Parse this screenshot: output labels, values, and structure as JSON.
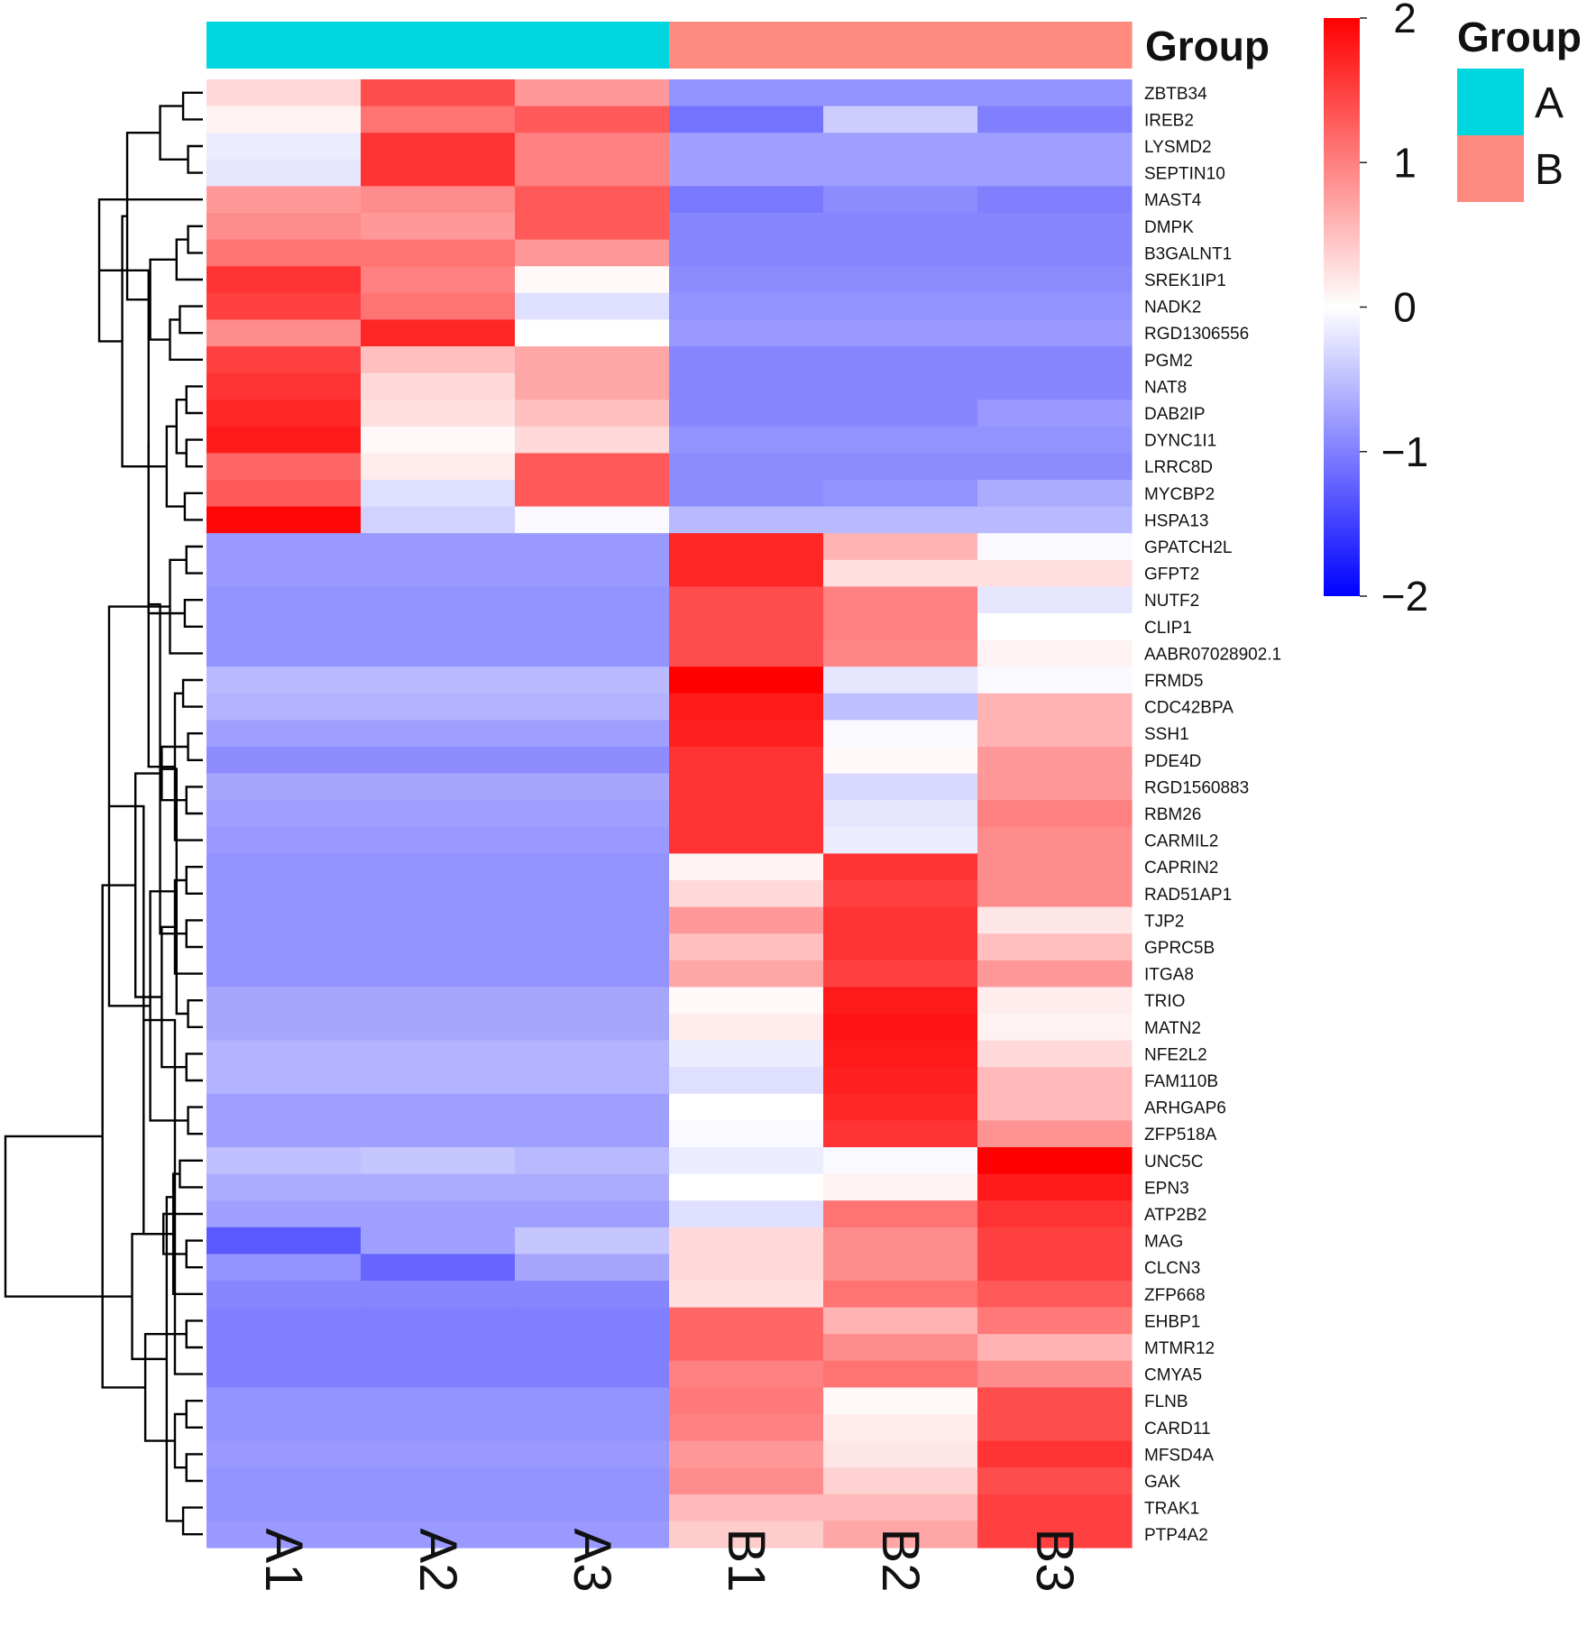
{
  "chart_data": {
    "type": "heatmap",
    "columns": [
      "A1",
      "A2",
      "A3",
      "B1",
      "B2",
      "B3"
    ],
    "column_groups": [
      "A",
      "A",
      "A",
      "B",
      "B",
      "B"
    ],
    "annotation_title": "Group",
    "groups": [
      {
        "name": "A",
        "color": "#00D6DF"
      },
      {
        "name": "B",
        "color": "#FF8A80"
      }
    ],
    "legend_title": "Group",
    "color_scale": {
      "min": -2,
      "max": 2,
      "low": "#0000FF",
      "mid": "#FFFFFF",
      "high": "#FF0000",
      "ticks": [
        "2",
        "1",
        "0",
        "−1",
        "−2"
      ]
    },
    "rows": [
      {
        "gene": "ZBTB34",
        "values": [
          0.3,
          1.4,
          0.8,
          -0.85,
          -0.85,
          -0.85
        ]
      },
      {
        "gene": "IREB2",
        "values": [
          0.1,
          1.1,
          1.3,
          -1.1,
          -0.4,
          -1.0
        ]
      },
      {
        "gene": "LYSMD2",
        "values": [
          -0.15,
          1.6,
          1.0,
          -0.75,
          -0.75,
          -0.75
        ]
      },
      {
        "gene": "SEPTIN10",
        "values": [
          -0.2,
          1.6,
          1.0,
          -0.75,
          -0.75,
          -0.75
        ]
      },
      {
        "gene": "MAST4",
        "values": [
          0.8,
          0.9,
          1.3,
          -1.05,
          -0.9,
          -1.0
        ]
      },
      {
        "gene": "DMPK",
        "values": [
          0.9,
          0.8,
          1.3,
          -0.95,
          -0.95,
          -0.95
        ]
      },
      {
        "gene": "B3GALNT1",
        "values": [
          1.1,
          1.1,
          0.8,
          -0.95,
          -0.95,
          -0.95
        ]
      },
      {
        "gene": "SREK1IP1",
        "values": [
          1.6,
          1.0,
          0.05,
          -0.9,
          -0.9,
          -0.9
        ]
      },
      {
        "gene": "NADK2",
        "values": [
          1.5,
          1.1,
          -0.25,
          -0.85,
          -0.85,
          -0.85
        ]
      },
      {
        "gene": "RGD1306556",
        "values": [
          0.9,
          1.7,
          0.0,
          -0.8,
          -0.8,
          -0.8
        ]
      },
      {
        "gene": "PGM2",
        "values": [
          1.5,
          0.5,
          0.7,
          -0.95,
          -0.95,
          -0.95
        ]
      },
      {
        "gene": "NAT8",
        "values": [
          1.6,
          0.3,
          0.7,
          -0.95,
          -0.95,
          -0.95
        ]
      },
      {
        "gene": "DAB2IP",
        "values": [
          1.7,
          0.25,
          0.5,
          -0.95,
          -0.95,
          -0.8
        ]
      },
      {
        "gene": "DYNC1I1",
        "values": [
          1.8,
          0.05,
          0.3,
          -0.85,
          -0.85,
          -0.85
        ]
      },
      {
        "gene": "LRRC8D",
        "values": [
          1.2,
          0.15,
          1.3,
          -0.9,
          -0.9,
          -0.9
        ]
      },
      {
        "gene": "MYCBP2",
        "values": [
          1.3,
          -0.25,
          1.3,
          -0.9,
          -0.85,
          -0.65
        ]
      },
      {
        "gene": "HSPA13",
        "values": [
          1.95,
          -0.35,
          -0.05,
          -0.55,
          -0.55,
          -0.55
        ]
      },
      {
        "gene": "GPATCH2L",
        "values": [
          -0.8,
          -0.8,
          -0.8,
          1.7,
          0.6,
          -0.05
        ]
      },
      {
        "gene": "GFPT2",
        "values": [
          -0.8,
          -0.8,
          -0.8,
          1.7,
          0.25,
          0.25
        ]
      },
      {
        "gene": "NUTF2",
        "values": [
          -0.85,
          -0.85,
          -0.85,
          1.4,
          1.0,
          -0.2
        ]
      },
      {
        "gene": "CLIP1",
        "values": [
          -0.85,
          -0.85,
          -0.85,
          1.4,
          1.0,
          0.0
        ]
      },
      {
        "gene": "AABR07028902.1",
        "values": [
          -0.85,
          -0.85,
          -0.85,
          1.4,
          0.95,
          0.1
        ]
      },
      {
        "gene": "FRMD5",
        "values": [
          -0.55,
          -0.55,
          -0.55,
          2.0,
          -0.2,
          -0.05
        ]
      },
      {
        "gene": "CDC42BPA",
        "values": [
          -0.6,
          -0.6,
          -0.6,
          1.8,
          -0.5,
          0.6
        ]
      },
      {
        "gene": "SSH1",
        "values": [
          -0.75,
          -0.75,
          -0.75,
          1.75,
          -0.05,
          0.6
        ]
      },
      {
        "gene": "PDE4D",
        "values": [
          -0.9,
          -0.9,
          -0.9,
          1.6,
          0.05,
          0.8
        ]
      },
      {
        "gene": "RGD1560883",
        "values": [
          -0.7,
          -0.7,
          -0.7,
          1.6,
          -0.3,
          0.8
        ]
      },
      {
        "gene": "RBM26",
        "values": [
          -0.75,
          -0.75,
          -0.75,
          1.6,
          -0.2,
          1.0
        ]
      },
      {
        "gene": "CARMIL2",
        "values": [
          -0.8,
          -0.8,
          -0.8,
          1.6,
          -0.15,
          0.9
        ]
      },
      {
        "gene": "CAPRIN2",
        "values": [
          -0.85,
          -0.85,
          -0.85,
          0.1,
          1.6,
          0.9
        ]
      },
      {
        "gene": "RAD51AP1",
        "values": [
          -0.85,
          -0.85,
          -0.85,
          0.3,
          1.5,
          0.9
        ]
      },
      {
        "gene": "TJP2",
        "values": [
          -0.85,
          -0.85,
          -0.85,
          0.8,
          1.6,
          0.2
        ]
      },
      {
        "gene": "GPRC5B",
        "values": [
          -0.85,
          -0.85,
          -0.85,
          0.5,
          1.6,
          0.5
        ]
      },
      {
        "gene": "ITGA8",
        "values": [
          -0.85,
          -0.85,
          -0.85,
          0.7,
          1.5,
          0.8
        ]
      },
      {
        "gene": "TRIO",
        "values": [
          -0.7,
          -0.7,
          -0.7,
          0.05,
          1.8,
          0.15
        ]
      },
      {
        "gene": "MATN2",
        "values": [
          -0.7,
          -0.7,
          -0.7,
          0.15,
          1.85,
          0.1
        ]
      },
      {
        "gene": "NFE2L2",
        "values": [
          -0.6,
          -0.6,
          -0.6,
          -0.15,
          1.8,
          0.3
        ]
      },
      {
        "gene": "FAM110B",
        "values": [
          -0.6,
          -0.6,
          -0.6,
          -0.25,
          1.75,
          0.55
        ]
      },
      {
        "gene": "ARHGAP6",
        "values": [
          -0.75,
          -0.75,
          -0.75,
          0.0,
          1.7,
          0.55
        ]
      },
      {
        "gene": "ZFP518A",
        "values": [
          -0.75,
          -0.75,
          -0.75,
          -0.05,
          1.6,
          0.85
        ]
      },
      {
        "gene": "UNC5C",
        "values": [
          -0.5,
          -0.45,
          -0.55,
          -0.15,
          -0.05,
          2.0
        ]
      },
      {
        "gene": "EPN3",
        "values": [
          -0.65,
          -0.65,
          -0.65,
          0.0,
          0.1,
          1.8
        ]
      },
      {
        "gene": "ATP2B2",
        "values": [
          -0.75,
          -0.75,
          -0.75,
          -0.25,
          1.1,
          1.6
        ]
      },
      {
        "gene": "MAG",
        "values": [
          -1.3,
          -0.75,
          -0.45,
          0.3,
          0.9,
          1.5
        ]
      },
      {
        "gene": "CLCN3",
        "values": [
          -0.85,
          -1.2,
          -0.7,
          0.3,
          0.9,
          1.5
        ]
      },
      {
        "gene": "ZFP668",
        "values": [
          -0.95,
          -0.95,
          -0.95,
          0.25,
          1.1,
          1.3
        ]
      },
      {
        "gene": "EHBP1",
        "values": [
          -1.0,
          -1.0,
          -1.0,
          1.2,
          0.6,
          1.05
        ]
      },
      {
        "gene": "MTMR12",
        "values": [
          -1.0,
          -1.0,
          -1.0,
          1.2,
          0.9,
          0.6
        ]
      },
      {
        "gene": "CMYA5",
        "values": [
          -1.0,
          -1.0,
          -1.0,
          1.0,
          1.1,
          0.9
        ]
      },
      {
        "gene": "FLNB",
        "values": [
          -0.85,
          -0.85,
          -0.85,
          1.05,
          0.05,
          1.4
        ]
      },
      {
        "gene": "CARD11",
        "values": [
          -0.85,
          -0.85,
          -0.85,
          1.0,
          0.15,
          1.4
        ]
      },
      {
        "gene": "MFSD4A",
        "values": [
          -0.8,
          -0.8,
          -0.8,
          0.8,
          0.2,
          1.6
        ]
      },
      {
        "gene": "GAK",
        "values": [
          -0.85,
          -0.85,
          -0.85,
          0.9,
          0.35,
          1.4
        ]
      },
      {
        "gene": "TRAK1",
        "values": [
          -0.85,
          -0.85,
          -0.85,
          0.55,
          0.55,
          1.5
        ]
      },
      {
        "gene": "PTP4A2",
        "values": [
          -0.8,
          -0.8,
          -0.8,
          0.4,
          0.7,
          1.5
        ]
      }
    ],
    "dendrogram": [
      [
        0,
        1,
        1.2
      ],
      [
        2,
        3,
        0.9
      ],
      [
        -1,
        -2,
        2.6
      ],
      [
        5,
        6,
        0.9
      ],
      [
        -4,
        7,
        1.6
      ],
      [
        8,
        9,
        1.4
      ],
      [
        -6,
        10,
        2.0
      ],
      [
        -5,
        -7,
        3.2
      ],
      [
        -3,
        -8,
        4.6
      ],
      [
        11,
        12,
        1.0
      ],
      [
        13,
        14,
        1.0
      ],
      [
        -10,
        -11,
        1.6
      ],
      [
        15,
        16,
        1.1
      ],
      [
        -12,
        -13,
        2.2
      ],
      [
        -9,
        -14,
        4.9
      ],
      [
        -15,
        4,
        6.3
      ],
      [
        17,
        18,
        1.0
      ],
      [
        19,
        20,
        1.1
      ],
      [
        -17,
        21,
        2.0
      ],
      [
        -16,
        -18,
        3.3
      ],
      [
        22,
        23,
        1.2
      ],
      [
        24,
        25,
        0.9
      ],
      [
        26,
        27,
        1.0
      ],
      [
        -21,
        28,
        1.7
      ],
      [
        -22,
        -23,
        2.5
      ],
      [
        -20,
        -24,
        3.3
      ],
      [
        29,
        30,
        1.0
      ],
      [
        31,
        32,
        1.0
      ],
      [
        -27,
        33,
        1.7
      ],
      [
        -26,
        -28,
        2.6
      ],
      [
        34,
        35,
        0.9
      ],
      [
        36,
        37,
        1.0
      ],
      [
        38,
        39,
        0.9
      ],
      [
        -30,
        -31,
        1.6
      ],
      [
        -29,
        -32,
        2.5
      ],
      [
        -33,
        -34,
        3.2
      ],
      [
        -25,
        -35,
        4.1
      ],
      [
        -19,
        -36,
        5.7
      ],
      [
        40,
        41,
        1.4
      ],
      [
        43,
        44,
        1.0
      ],
      [
        -39,
        45,
        1.8
      ],
      [
        42,
        -40,
        2.4
      ],
      [
        -38,
        -41,
        3.6
      ],
      [
        46,
        47,
        1.0
      ],
      [
        -43,
        48,
        1.7
      ],
      [
        49,
        50,
        1.0
      ],
      [
        51,
        52,
        1.0
      ],
      [
        53,
        54,
        1.2
      ],
      [
        -46,
        -47,
        1.7
      ],
      [
        -45,
        -48,
        2.2
      ],
      [
        -44,
        -49,
        3.5
      ],
      [
        -42,
        -50,
        4.3
      ],
      [
        -37,
        -51,
        6.1
      ],
      [
        -52,
        -53,
        12.0
      ]
    ]
  }
}
